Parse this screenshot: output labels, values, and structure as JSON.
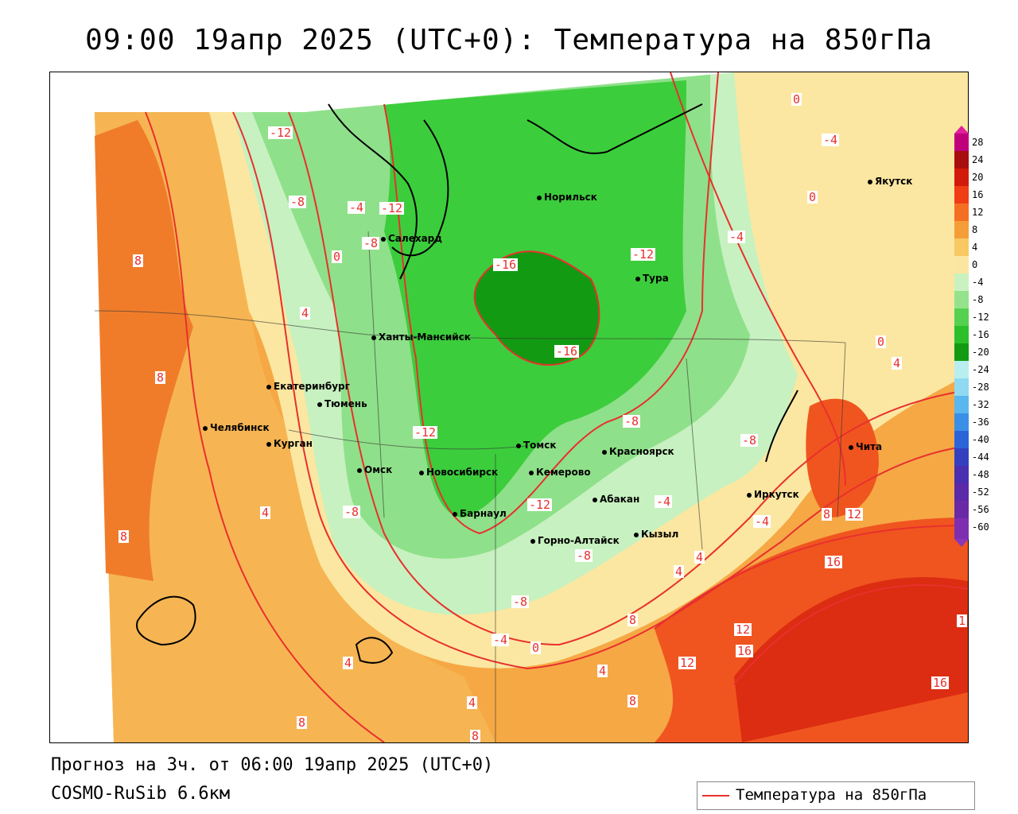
{
  "title": "09:00 19апр 2025 (UTC+0): Температура на 850гПа",
  "forecast_line": "Прогноз на 3ч. от 06:00 19апр 2025 (UTC+0)",
  "model_line": "COSMO-RuSib 6.6км",
  "legend": {
    "label": "Температура на 850гПа",
    "line_color": "#e8302e"
  },
  "colorbar": {
    "ticks": [
      "28",
      "24",
      "20",
      "16",
      "12",
      "8",
      "4",
      "0",
      "-4",
      "-8",
      "-12",
      "-16",
      "-20",
      "-24",
      "-28",
      "-32",
      "-36",
      "-40",
      "-44",
      "-48",
      "-52",
      "-56",
      "-60"
    ]
  },
  "cities": [
    {
      "name": "Норильск"
    },
    {
      "name": "Якутск"
    },
    {
      "name": "Салехард"
    },
    {
      "name": "Тура"
    },
    {
      "name": "Ханты-Мансийск"
    },
    {
      "name": "Екатеринбург"
    },
    {
      "name": "Тюмень"
    },
    {
      "name": "Челябинск"
    },
    {
      "name": "Курган"
    },
    {
      "name": "Омск"
    },
    {
      "name": "Томск"
    },
    {
      "name": "Новосибирск"
    },
    {
      "name": "Кемерово"
    },
    {
      "name": "Красноярск"
    },
    {
      "name": "Барнаул"
    },
    {
      "name": "Абакан"
    },
    {
      "name": "Иркутск"
    },
    {
      "name": "Чита"
    },
    {
      "name": "Горно-Алтайск"
    },
    {
      "name": "Кызыл"
    }
  ],
  "contour_labels": [
    "-12",
    "-8",
    "-4",
    "-12",
    "-8",
    "0",
    "-16",
    "-12",
    "-4",
    "0",
    "-4",
    "0",
    "8",
    "4",
    "0",
    "-16",
    "4",
    "8",
    "-12",
    "-8",
    "-8",
    "-4",
    "-12",
    "4",
    "8",
    "12",
    "-8",
    "-4",
    "8",
    "4",
    "4",
    "-8",
    "-8",
    "-4",
    "0",
    "8",
    "4",
    "16",
    "12",
    "16",
    "12",
    "8",
    "4",
    "4",
    "8",
    "8",
    "16",
    "1"
  ]
}
